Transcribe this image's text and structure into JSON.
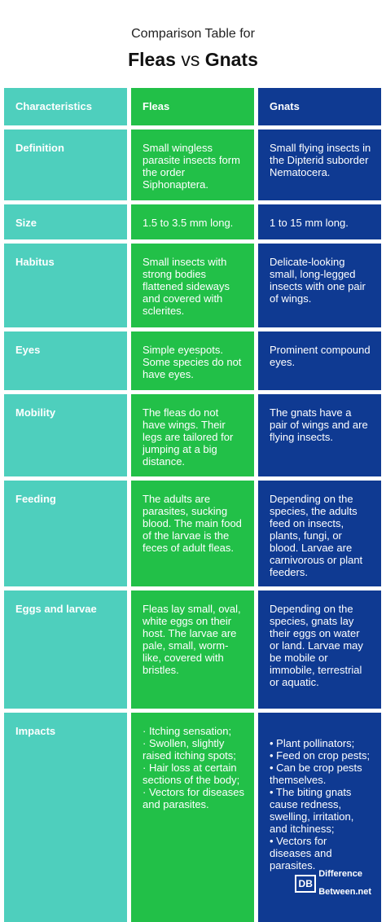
{
  "header": {
    "subtitle": "Comparison Table for",
    "title_left": "Fleas",
    "title_vs": "vs",
    "title_right": "Gnats"
  },
  "columns": [
    "Characteristics",
    "Fleas",
    "Gnats"
  ],
  "rows": [
    {
      "characteristic": "Definition",
      "fleas": "Small wingless parasite insects form the order Siphonaptera.",
      "gnats": "Small flying insects in the Dipterid suborder Nematocera."
    },
    {
      "characteristic": "Size",
      "fleas": "1.5 to 3.5 mm long.",
      "gnats": "1 to 15 mm long."
    },
    {
      "characteristic": "Habitus",
      "fleas": "Small insects with strong bodies flattened sideways and covered with sclerites.",
      "gnats": "Delicate-looking small, long-legged insects with one pair of wings."
    },
    {
      "characteristic": "Eyes",
      "fleas": "Simple eyespots. Some species do not have eyes.",
      "gnats": "Prominent compound eyes."
    },
    {
      "characteristic": "Mobility",
      "fleas": "The fleas do not have wings. Their legs are tailored for jumping at a big distance.",
      "gnats": "The gnats have a pair of wings and are flying insects."
    },
    {
      "characteristic": "Feeding",
      "fleas": "The adults are parasites, sucking blood. The main food of the larvae is the feces of adult fleas.",
      "gnats": "Depending on the species, the adults feed on insects, plants, fungi, or blood. Larvae are carnivorous or plant feeders."
    },
    {
      "characteristic": "Eggs and larvae",
      "fleas": "Fleas lay small, oval, white eggs on their host. The larvae are pale, small, worm-like, covered with bristles.",
      "gnats": "Depending on the species, gnats lay their eggs on water or land. Larvae may be mobile or immobile, terrestrial or aquatic."
    },
    {
      "characteristic": "Impacts",
      "fleas": "· Itching sensation;\n· Swollen, slightly raised itching spots;\n· Hair loss at certain sections of the body;\n· Vectors for diseases and parasites.",
      "gnats": "• Plant pollinators;\n• Feed on crop pests;\n• Can be crop pests themselves.\n• The biting gnats cause redness, swelling, irritation, and itchiness;\n• Vectors for diseases and parasites."
    }
  ],
  "logo": {
    "mark": "DB",
    "line1": "Difference",
    "line2": "Between.net"
  },
  "colors": {
    "characteristics_column": "#4ecfbd",
    "fleas_column": "#22c048",
    "gnats_column": "#0f3a92"
  }
}
